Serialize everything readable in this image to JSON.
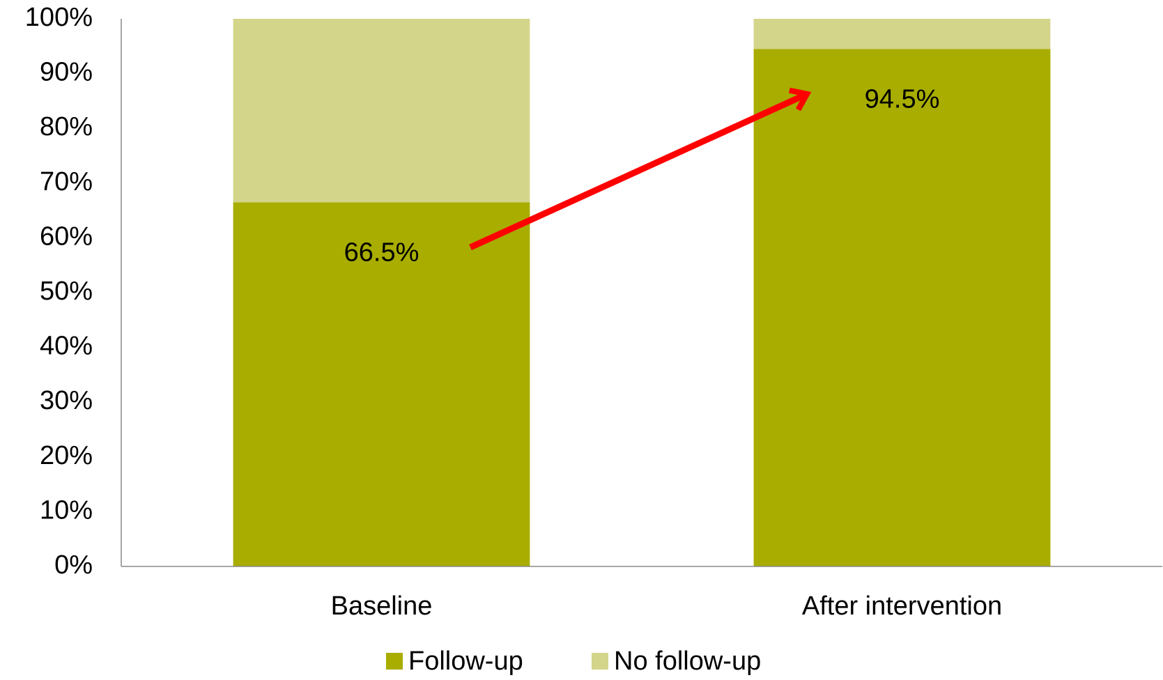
{
  "chart_data": {
    "type": "stacked_bar",
    "categories": [
      "Baseline",
      "After intervention"
    ],
    "series": [
      {
        "name": "Follow-up",
        "color": "#a8ad00",
        "values": [
          66.5,
          94.5
        ],
        "value_labels": [
          "66.5%",
          "94.5%"
        ]
      },
      {
        "name": "No follow-up",
        "color": "#d3d58a",
        "values": [
          33.5,
          5.5
        ]
      }
    ],
    "ylim": [
      0,
      100
    ],
    "yticks": [
      {
        "value": 0,
        "label": "0%"
      },
      {
        "value": 10,
        "label": "10%"
      },
      {
        "value": 20,
        "label": "20%"
      },
      {
        "value": 30,
        "label": "30%"
      },
      {
        "value": 40,
        "label": "40%"
      },
      {
        "value": 50,
        "label": "50%"
      },
      {
        "value": 60,
        "label": "60%"
      },
      {
        "value": 70,
        "label": "70%"
      },
      {
        "value": 80,
        "label": "80%"
      },
      {
        "value": 90,
        "label": "90%"
      },
      {
        "value": 100,
        "label": "100%"
      }
    ],
    "grid": false,
    "legend": "bottom"
  }
}
